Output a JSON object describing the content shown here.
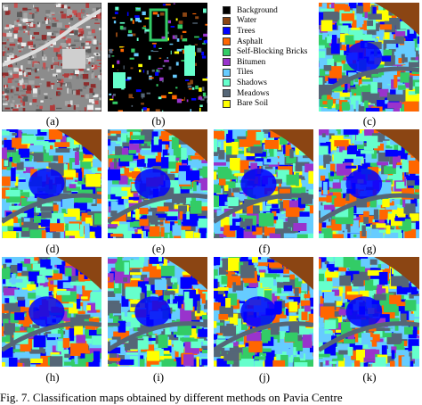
{
  "legend": {
    "items": [
      {
        "label": "Background",
        "color": "#000000"
      },
      {
        "label": "Water",
        "color": "#8b4513"
      },
      {
        "label": "Trees",
        "color": "#0000ff"
      },
      {
        "label": "Asphalt",
        "color": "#ff6600"
      },
      {
        "label": "Self-Blocking Bricks",
        "color": "#33cc66"
      },
      {
        "label": "Bitumen",
        "color": "#9933cc"
      },
      {
        "label": "Tiles",
        "color": "#66ccff"
      },
      {
        "label": "Shadows",
        "color": "#66ffcc"
      },
      {
        "label": "Meadows",
        "color": "#556677"
      },
      {
        "label": "Bare Soil",
        "color": "#ffff00"
      }
    ]
  },
  "panels": [
    {
      "id": "a",
      "label": "(a)",
      "kind": "photo"
    },
    {
      "id": "b",
      "label": "(b)",
      "kind": "groundtruth"
    },
    {
      "id": "c",
      "label": "(c)",
      "kind": "map"
    },
    {
      "id": "d",
      "label": "(d)",
      "kind": "map"
    },
    {
      "id": "e",
      "label": "(e)",
      "kind": "map"
    },
    {
      "id": "f",
      "label": "(f)",
      "kind": "map"
    },
    {
      "id": "g",
      "label": "(g)",
      "kind": "map"
    },
    {
      "id": "h",
      "label": "(h)",
      "kind": "map"
    },
    {
      "id": "i",
      "label": "(i)",
      "kind": "map"
    },
    {
      "id": "j",
      "label": "(j)",
      "kind": "map"
    },
    {
      "id": "k",
      "label": "(k)",
      "kind": "map"
    }
  ],
  "caption": "Fig. 7.    Classification maps obtained by different methods on Pavia Centre"
}
